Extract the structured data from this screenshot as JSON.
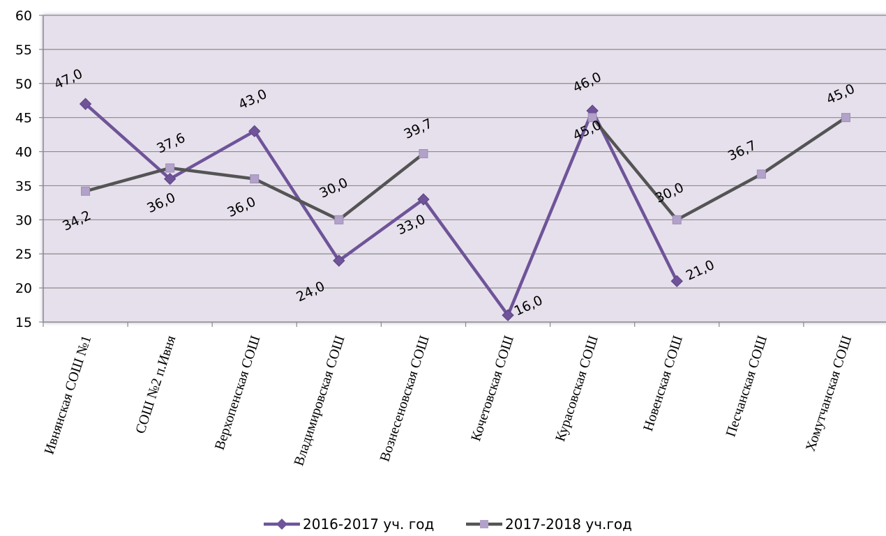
{
  "chart_data": {
    "type": "line",
    "categories": [
      "Ивнянская СОШ №1",
      "СОШ №2 п.Ивня",
      "Верхопенская СОШ",
      "Владимировская СОШ",
      "Вознесеновская СОШ",
      "Кочетовская СОШ",
      "Курасовская СОШ",
      "Новенская СОШ",
      "Песчанская СОШ",
      "Хомутчанская СОШ"
    ],
    "series": [
      {
        "name": "2016-2017 уч. год",
        "values": [
          47.0,
          36.0,
          43.0,
          24.0,
          33.0,
          16.0,
          46.0,
          21.0,
          null,
          null
        ],
        "labels": [
          "47,0",
          "36,0",
          "43,0",
          "24,0",
          "33,0",
          "16,0",
          "46,0",
          "21,0",
          null,
          null
        ],
        "color": "#6f5499",
        "marker": "diamond"
      },
      {
        "name": "2017-2018 уч.год",
        "values": [
          34.2,
          37.6,
          36.0,
          30.0,
          39.7,
          null,
          45.0,
          30.0,
          36.7,
          45.0
        ],
        "labels": [
          "34,2",
          "37,6",
          "36,0",
          "30,0",
          "39,7",
          null,
          "45,0",
          "30,0",
          "36,7",
          "45,0"
        ],
        "color": "#545454",
        "marker_color": "#b2a2c9",
        "marker": "square"
      }
    ],
    "y_ticks": [
      "60",
      "55",
      "50",
      "45",
      "40",
      "35",
      "30",
      "25",
      "20",
      "15"
    ],
    "ylim": [
      15,
      60
    ],
    "grid": true,
    "legend_position": "bottom",
    "plot_background": "#e6e0ec"
  }
}
